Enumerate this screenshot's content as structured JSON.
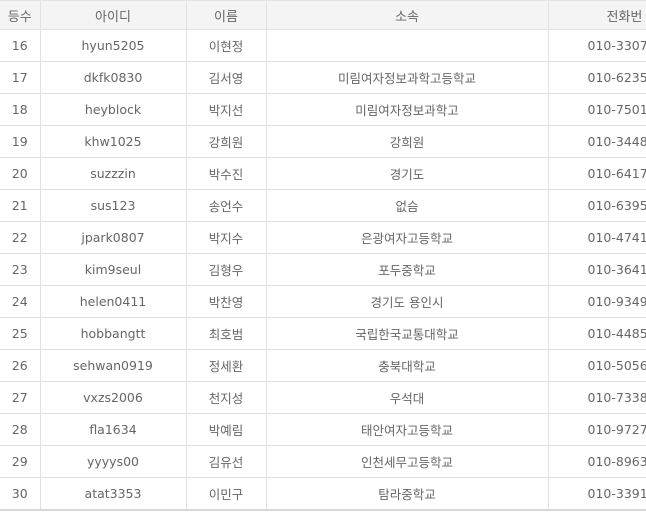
{
  "table": {
    "headers": [
      "등수",
      "아이디",
      "이름",
      "소속",
      "전화번"
    ],
    "rows": [
      {
        "rank": "16",
        "id": "hyun5205",
        "name": "이현정",
        "affiliation": "",
        "phone": "010-3307-"
      },
      {
        "rank": "17",
        "id": "dkfk0830",
        "name": "김서영",
        "affiliation": "미림여자정보과학고등학교",
        "phone": "010-6235-"
      },
      {
        "rank": "18",
        "id": "heyblock",
        "name": "박지선",
        "affiliation": "미림여자정보과학고",
        "phone": "010-7501-"
      },
      {
        "rank": "19",
        "id": "khw1025",
        "name": "강희원",
        "affiliation": "강희원",
        "phone": "010-3448-"
      },
      {
        "rank": "20",
        "id": "suzzzin",
        "name": "박수진",
        "affiliation": "경기도",
        "phone": "010-6417-"
      },
      {
        "rank": "21",
        "id": "sus123",
        "name": "송언수",
        "affiliation": "없슴",
        "phone": "010-6395-"
      },
      {
        "rank": "22",
        "id": "jpark0807",
        "name": "박지수",
        "affiliation": "은광여자고등학교",
        "phone": "010-4741-"
      },
      {
        "rank": "23",
        "id": "kim9seul",
        "name": "김형우",
        "affiliation": "포두중학교",
        "phone": "010-3641-"
      },
      {
        "rank": "24",
        "id": "helen0411",
        "name": "박찬영",
        "affiliation": "경기도 용인시",
        "phone": "010-9349-"
      },
      {
        "rank": "25",
        "id": "hobbangtt",
        "name": "최호범",
        "affiliation": "국립한국교통대학교",
        "phone": "010-4485-"
      },
      {
        "rank": "26",
        "id": "sehwan0919",
        "name": "정세환",
        "affiliation": "충북대학교",
        "phone": "010-5056-"
      },
      {
        "rank": "27",
        "id": "vxzs2006",
        "name": "천지성",
        "affiliation": "우석대",
        "phone": "010-7338-"
      },
      {
        "rank": "28",
        "id": "fla1634",
        "name": "박예림",
        "affiliation": "태안여자고등학교",
        "phone": "010-9727-"
      },
      {
        "rank": "29",
        "id": "yyyys00",
        "name": "김유선",
        "affiliation": "인천세무고등학교",
        "phone": "010-8963-"
      },
      {
        "rank": "30",
        "id": "atat3353",
        "name": "이민구",
        "affiliation": "탐라중학교",
        "phone": "010-3391-"
      }
    ]
  }
}
